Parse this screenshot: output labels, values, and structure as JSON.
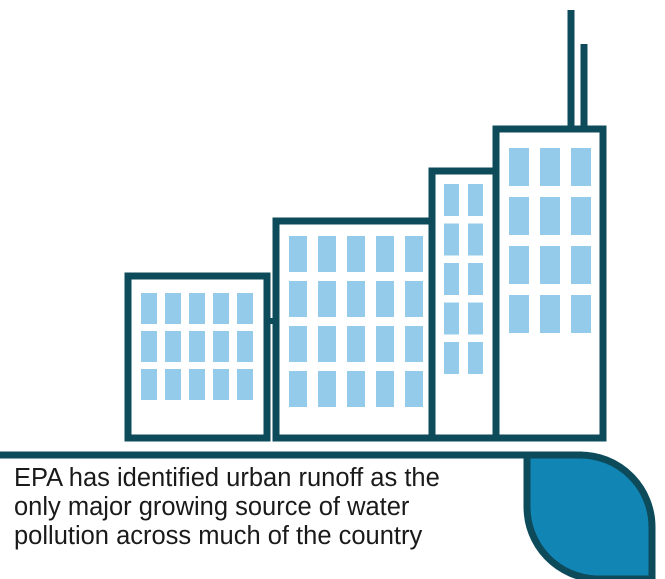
{
  "caption": {
    "lines": [
      "EPA has identified urban runoff as the",
      "only major growing source of water",
      "pollution across much of the country"
    ]
  },
  "colors": {
    "outline": "#0d4b5b",
    "window": "#94cbea",
    "water": "#1185b4",
    "background": "#ffffff",
    "text": "#1a1a1a"
  }
}
